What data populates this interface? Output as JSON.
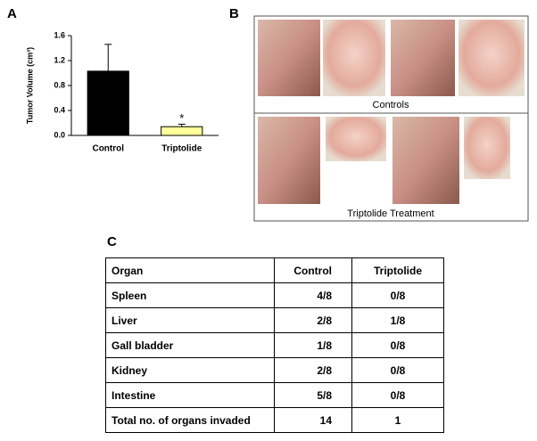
{
  "panel_labels": [
    "A",
    "B",
    "C"
  ],
  "chart_data": {
    "type": "bar",
    "ylabel": "Tumor Volume (cm³)",
    "categories": [
      "Control",
      "Triptolide"
    ],
    "values": [
      1.03,
      0.14
    ],
    "errors": [
      0.43,
      0.04
    ],
    "colors": [
      "#000000",
      "#ffff99"
    ],
    "ylim": [
      0,
      1.6
    ],
    "yticks": [
      {
        "value": 0,
        "label": "0.0"
      },
      0.4,
      0.8,
      1.2,
      1.6
    ],
    "significance_marker": "*"
  },
  "photos": {
    "captions": [
      "Controls",
      "Triptolide Treatment"
    ]
  },
  "table": {
    "header": [
      "Organ",
      "Control",
      "Triptolide"
    ],
    "rows": [
      [
        "Spleen",
        "4/8",
        "0/8"
      ],
      [
        "Liver",
        "2/8",
        "1/8"
      ],
      [
        "Gall bladder",
        "1/8",
        "0/8"
      ],
      [
        "Kidney",
        "2/8",
        "0/8"
      ],
      [
        "Intestine",
        "5/8",
        "0/8"
      ],
      [
        "Total no. of organs invaded",
        "14",
        "1"
      ]
    ]
  }
}
